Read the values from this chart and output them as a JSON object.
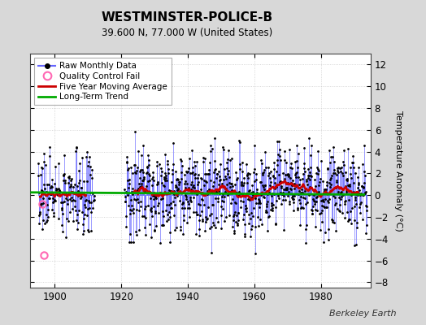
{
  "title": "WESTMINSTER-POLICE-B",
  "subtitle": "39.600 N, 77.000 W (United States)",
  "ylabel": "Temperature Anomaly (°C)",
  "attribution": "Berkeley Earth",
  "year_start": 1893,
  "year_end": 1993,
  "ylim": [
    -8.5,
    13.0
  ],
  "yticks": [
    -8,
    -6,
    -4,
    -2,
    0,
    2,
    4,
    6,
    8,
    10,
    12
  ],
  "xticks": [
    1900,
    1920,
    1940,
    1960,
    1980
  ],
  "background_color": "#d8d8d8",
  "plot_bg_color": "#ffffff",
  "raw_line_color": "#6666ff",
  "raw_marker_color": "#000000",
  "qc_fail_color": "#ff69b4",
  "moving_avg_color": "#cc0000",
  "trend_color": "#00aa00",
  "legend_bg": "#ffffff",
  "seed": 137
}
